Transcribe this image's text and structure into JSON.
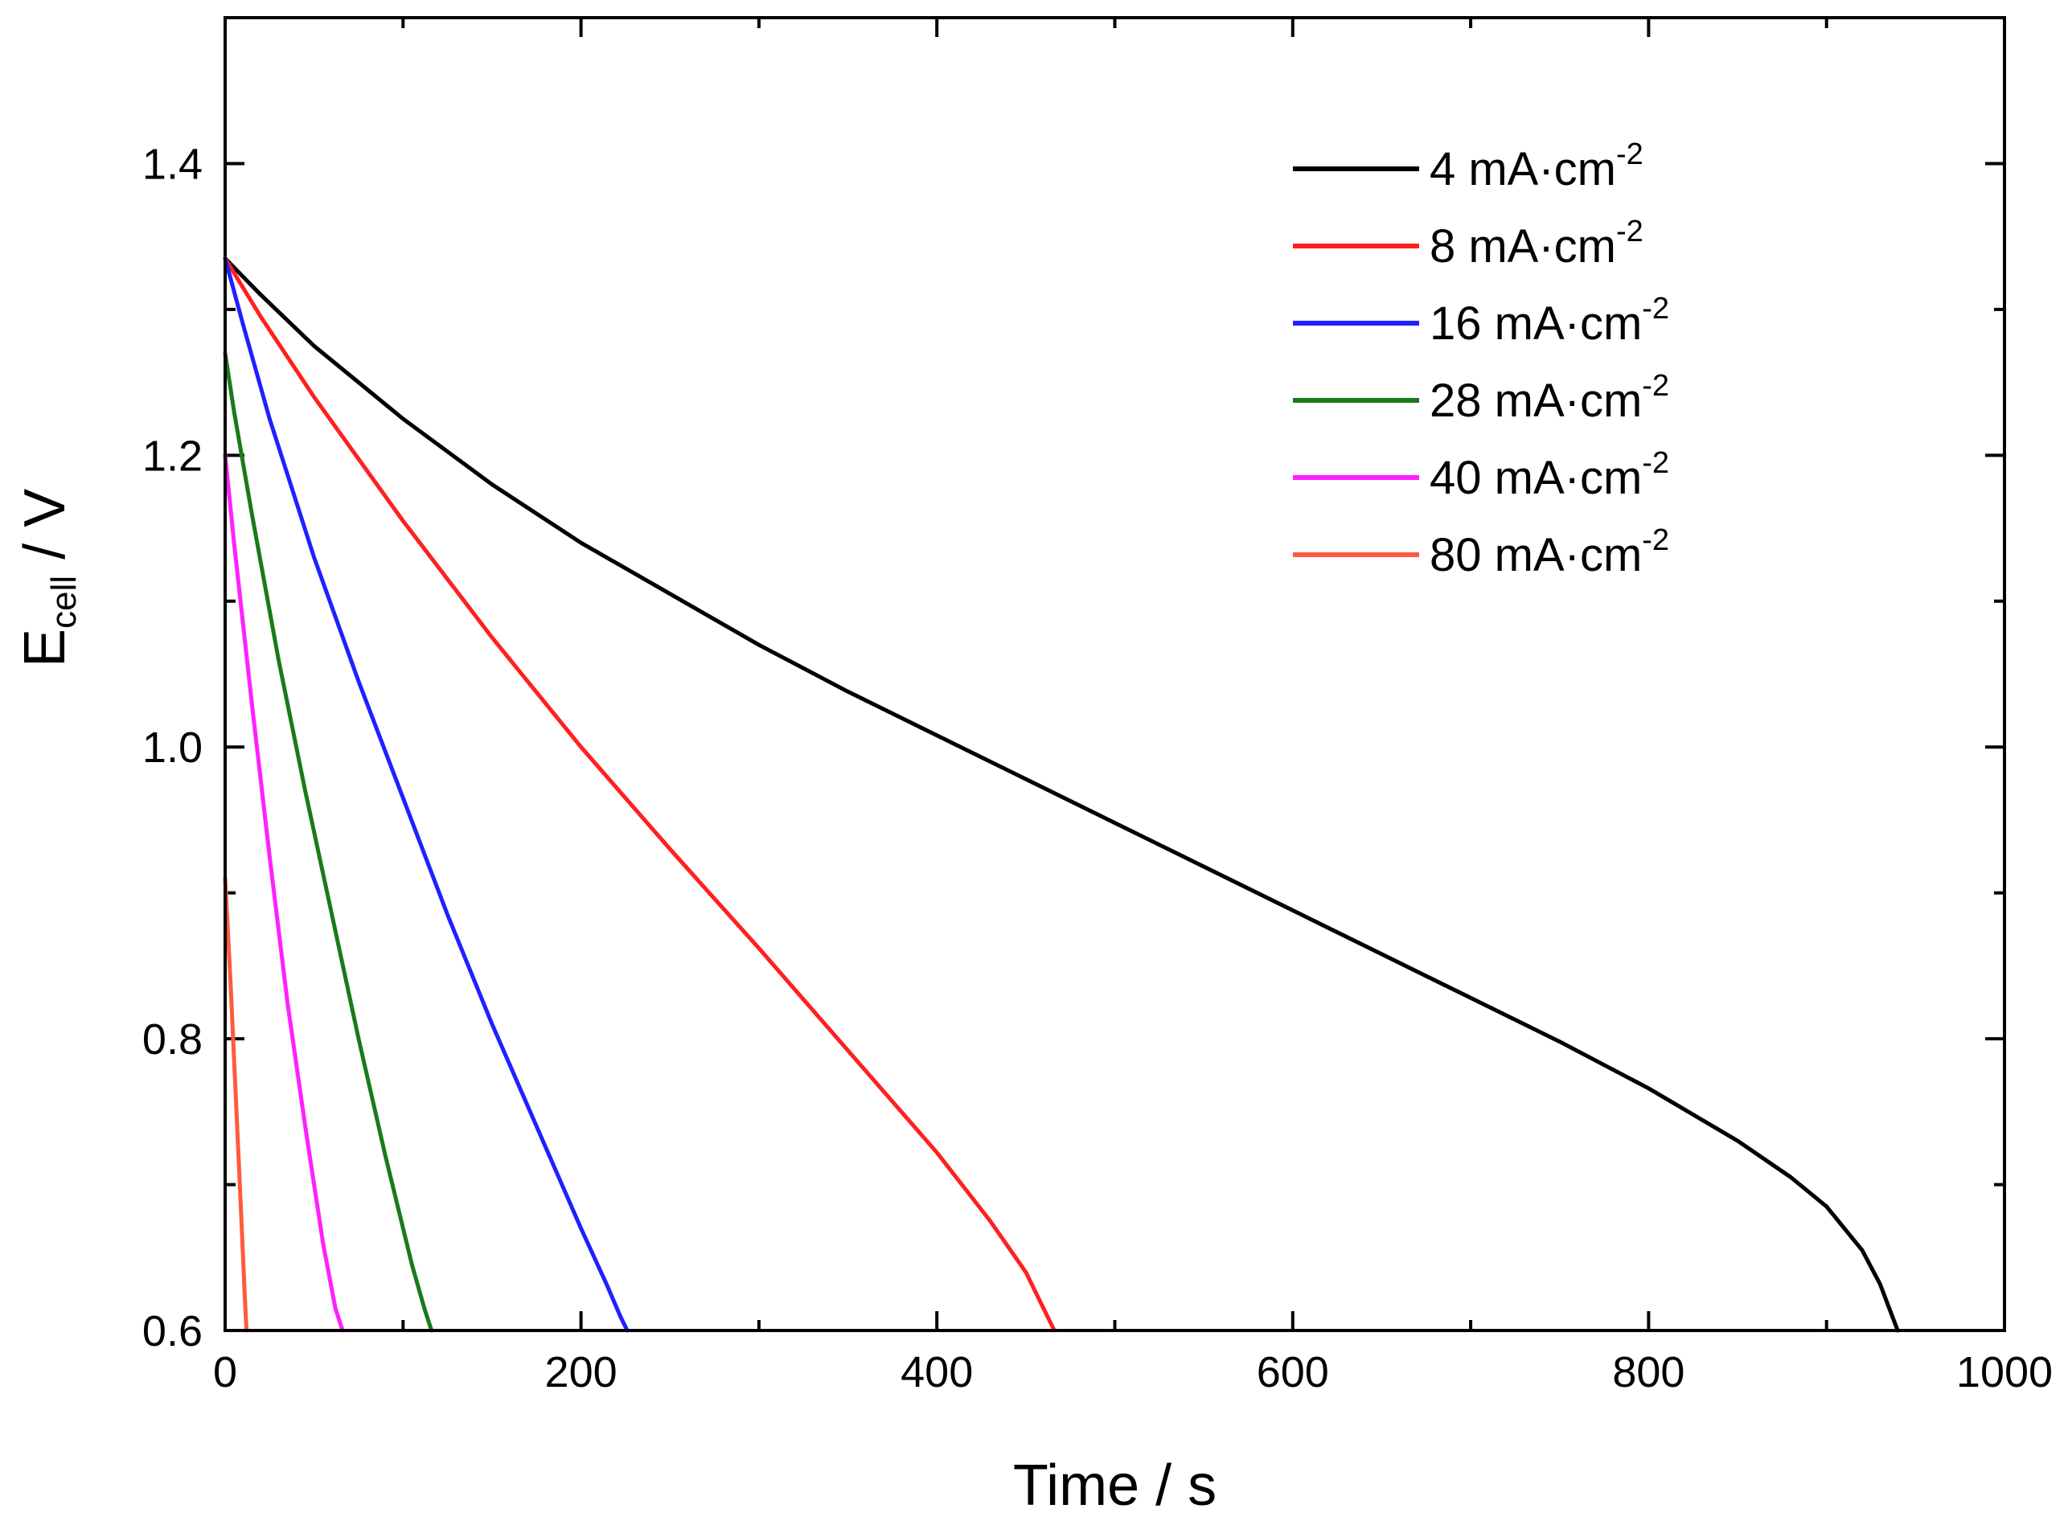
{
  "chart_data": {
    "type": "line",
    "title": "",
    "xlabel": "Time / s",
    "ylabel": {
      "main": "E",
      "sub": "cell",
      "unit": " / V"
    },
    "xlim": [
      0,
      1000
    ],
    "ylim": [
      0.6,
      1.5
    ],
    "xticks": [
      0,
      200,
      400,
      600,
      800,
      1000
    ],
    "xtick_labels": [
      "0",
      "200",
      "400",
      "600",
      "800",
      "1000"
    ],
    "yticks": [
      0.6,
      0.8,
      1.0,
      1.2,
      1.4
    ],
    "ytick_labels": [
      "0.6",
      "0.8",
      "1.0",
      "1.2",
      "1.4"
    ],
    "grid": false,
    "legend_position": "top-right",
    "series": [
      {
        "name": "4 mA·cm",
        "sup": "-2",
        "color": "#000000",
        "x": [
          0,
          20,
          50,
          100,
          150,
          200,
          250,
          300,
          350,
          400,
          450,
          500,
          550,
          600,
          650,
          700,
          750,
          800,
          850,
          880,
          900,
          920,
          930,
          940
        ],
        "y": [
          1.335,
          1.31,
          1.275,
          1.225,
          1.18,
          1.14,
          1.105,
          1.07,
          1.038,
          1.008,
          0.978,
          0.948,
          0.918,
          0.888,
          0.858,
          0.828,
          0.798,
          0.766,
          0.73,
          0.705,
          0.685,
          0.655,
          0.632,
          0.6
        ]
      },
      {
        "name": "8 mA·cm",
        "sup": "-2",
        "color": "#ff2020",
        "x": [
          0,
          20,
          50,
          100,
          150,
          200,
          250,
          300,
          350,
          400,
          430,
          450,
          460,
          466
        ],
        "y": [
          1.335,
          1.295,
          1.24,
          1.155,
          1.075,
          1.0,
          0.93,
          0.862,
          0.792,
          0.722,
          0.675,
          0.64,
          0.615,
          0.6
        ]
      },
      {
        "name": "16 mA·cm",
        "sup": "-2",
        "color": "#2020ff",
        "x": [
          0,
          10,
          25,
          50,
          75,
          100,
          125,
          150,
          175,
          200,
          215,
          222,
          226
        ],
        "y": [
          1.335,
          1.29,
          1.225,
          1.13,
          1.045,
          0.965,
          0.885,
          0.81,
          0.74,
          0.67,
          0.63,
          0.61,
          0.6
        ]
      },
      {
        "name": "28 mA·cm",
        "sup": "-2",
        "color": "#1a7a1a",
        "x": [
          0,
          5,
          15,
          30,
          45,
          60,
          75,
          90,
          105,
          112,
          116
        ],
        "y": [
          1.27,
          1.23,
          1.16,
          1.06,
          0.97,
          0.885,
          0.8,
          0.72,
          0.645,
          0.615,
          0.6
        ]
      },
      {
        "name": "40 mA·cm",
        "sup": "-2",
        "color": "#ff20ff",
        "x": [
          0,
          5,
          15,
          25,
          35,
          45,
          55,
          62,
          66
        ],
        "y": [
          1.2,
          1.14,
          1.03,
          0.925,
          0.825,
          0.74,
          0.66,
          0.615,
          0.6
        ]
      },
      {
        "name": "80 mA·cm",
        "sup": "-2",
        "color": "#ff5a3c",
        "x": [
          0,
          3,
          6,
          9,
          11,
          12
        ],
        "y": [
          0.91,
          0.84,
          0.76,
          0.68,
          0.625,
          0.6
        ]
      }
    ]
  }
}
